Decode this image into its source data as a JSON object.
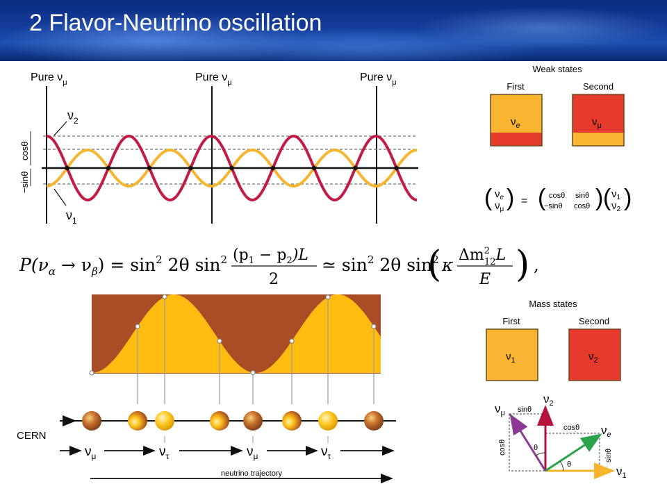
{
  "title": "2 Flavor-Neutrino oscillation",
  "wave_panel": {
    "pure_label": "Pure ν",
    "pure_sub": "μ",
    "nu2_label": "ν",
    "nu2_sub": "2",
    "nu1_label": "ν",
    "nu1_sub": "1",
    "cos_label": "cosθ",
    "sin_label": "−sinθ",
    "colors": {
      "nu2": "#c21b45",
      "nu1": "#f6b52e"
    }
  },
  "weak_states": {
    "heading": "Weak states",
    "first_label": "First",
    "second_label": "Second",
    "first_symbol": "ν",
    "first_sub": "e",
    "second_symbol": "ν",
    "second_sub": "μ"
  },
  "matrix": {
    "lhs_top": "ν",
    "lhs_top_sub": "e",
    "lhs_bot": "ν",
    "lhs_bot_sub": "μ",
    "equals": "=",
    "m11": "cosθ",
    "m12": "sinθ",
    "m21": "−sinθ",
    "m22": "cosθ",
    "rhs_top": "ν",
    "rhs_top_sub": "1",
    "rhs_bot": "ν",
    "rhs_bot_sub": "2"
  },
  "formula": {
    "lhs": "P(ν",
    "alpha": "α",
    "arrow": " → ν",
    "beta": "β",
    "close": ") = sin",
    "sq": "2",
    "two_theta": " 2θ sin",
    "num1": "(p",
    "num1a": "1",
    "num1b": " − p",
    "num1c": "2",
    "num1d": ")L",
    "den1": "2",
    "approx": "≃ sin",
    "two_theta2": " 2θ sin",
    "kappa": "κ",
    "num2": "Δm",
    "num2sup": "2",
    "num2sub": "12",
    "num2b": "L",
    "den2": "E",
    "comma": ","
  },
  "mass_states": {
    "heading": "Mass states",
    "first_label": "First",
    "second_label": "Second",
    "first_symbol": "ν",
    "first_sub": "1",
    "second_symbol": "ν",
    "second_sub": "2"
  },
  "trajectory": {
    "source": "CERN",
    "flavors": [
      {
        "symbol": "ν",
        "sub": "μ"
      },
      {
        "symbol": "ν",
        "sub": "τ"
      },
      {
        "symbol": "ν",
        "sub": "μ"
      },
      {
        "symbol": "ν",
        "sub": "τ"
      }
    ],
    "axis_label": "neutrino trajectory"
  },
  "mixing_diagram": {
    "nu_mu": "ν",
    "nu_mu_sub": "μ",
    "nu_2": "ν",
    "nu_2_sub": "2",
    "nu_e": "ν",
    "nu_e_sub": "e",
    "nu_1": "ν",
    "nu_1_sub": "1",
    "sin_top": "sinθ",
    "cos_top": "cosθ",
    "cos_left": "cosθ",
    "sin_right": "sinθ",
    "theta1": "θ",
    "theta2": "θ"
  }
}
